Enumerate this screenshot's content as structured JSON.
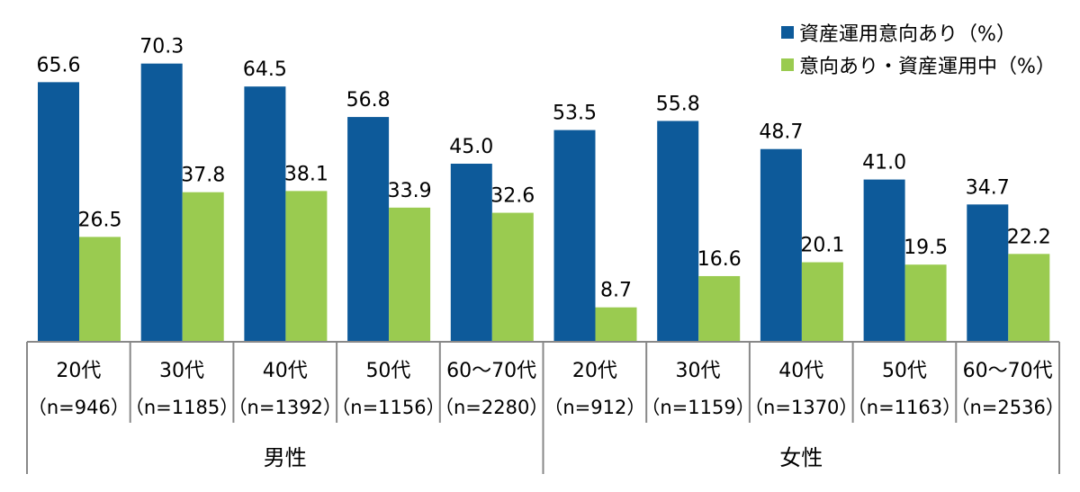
{
  "chart_data": {
    "type": "bar",
    "groups": [
      {
        "label": "男性",
        "categories": [
          {
            "age": "20代",
            "n": "（n=946）"
          },
          {
            "age": "30代",
            "n": "（n=1185）"
          },
          {
            "age": "40代",
            "n": "（n=1392）"
          },
          {
            "age": "50代",
            "n": "（n=1156）"
          },
          {
            "age": "60～70代",
            "n": "（n=2280）"
          }
        ]
      },
      {
        "label": "女性",
        "categories": [
          {
            "age": "20代",
            "n": "（n=912）"
          },
          {
            "age": "30代",
            "n": "（n=1159）"
          },
          {
            "age": "40代",
            "n": "（n=1370）"
          },
          {
            "age": "50代",
            "n": "（n=1163）"
          },
          {
            "age": "60～70代",
            "n": "（n=2536）"
          }
        ]
      }
    ],
    "series": [
      {
        "name": "資産運用意向あり（%）",
        "color": "#0d5a9a",
        "values": [
          65.6,
          70.3,
          64.5,
          56.8,
          45.0,
          53.5,
          55.8,
          48.7,
          41.0,
          34.7
        ],
        "labels": [
          "65.6",
          "70.3",
          "64.5",
          "56.8",
          "45.0",
          "53.5",
          "55.8",
          "48.7",
          "41.0",
          "34.7"
        ]
      },
      {
        "name": "意向あり・資産運用中（%）",
        "color": "#9acb50",
        "values": [
          26.5,
          37.8,
          38.1,
          33.9,
          32.6,
          8.7,
          16.6,
          20.1,
          19.5,
          22.2
        ],
        "labels": [
          "26.5",
          "37.8",
          "38.1",
          "33.9",
          "32.6",
          "8.7",
          "16.6",
          "20.1",
          "19.5",
          "22.2"
        ]
      }
    ],
    "ylim": [
      0,
      80
    ],
    "legend_position": "top-right",
    "grid": false
  }
}
